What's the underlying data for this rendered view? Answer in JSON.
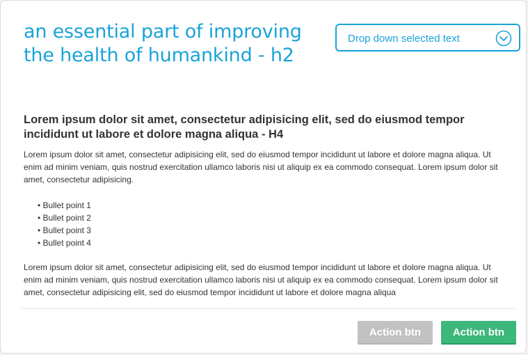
{
  "title": "an essential part of improving the health of humankind - h2",
  "dropdown": {
    "selected": "Drop down selected text",
    "icon": "chevron-down-circle-icon"
  },
  "heading4": "Lorem ipsum dolor sit amet, consectetur adipisicing elit, sed do eiusmod tempor incididunt ut labore et dolore magna aliqua - H4",
  "paragraph1": "Lorem ipsum dolor sit amet, consectetur adipisicing elit, sed do eiusmod tempor incididunt ut labore et dolore magna aliqua. Ut enim ad minim veniam, quis nostrud exercitation ullamco laboris nisi ut aliquip ex ea commodo consequat. Lorem ipsum dolor sit amet, consectetur adipisicing.",
  "bullets": [
    "Bullet point 1",
    "Bullet point 2",
    "Bullet point 3",
    "Bullet point 4"
  ],
  "paragraph2": "Lorem ipsum dolor sit amet, consectetur adipisicing elit, sed do eiusmod tempor incididunt ut labore et dolore magna aliqua. Ut enim ad minim veniam, quis nostrud exercitation ullamco laboris nisi ut aliquip ex ea commodo consequat. Lorem ipsum dolor sit amet, consectetur adipisicing elit, sed do eiusmod tempor incididunt ut labore et dolore magna aliqua",
  "actions": {
    "secondary_label": "Action btn",
    "primary_label": "Action btn"
  },
  "colors": {
    "accent": "#1aa3d8",
    "primary_button": "#3bb87a",
    "disabled_button": "#c2c2c2",
    "text": "#333333"
  }
}
